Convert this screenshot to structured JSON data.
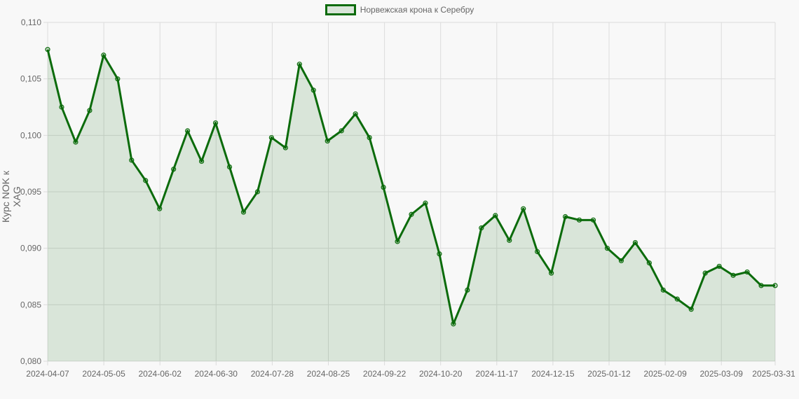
{
  "legend": {
    "label": "Норвежская крона к Серебру"
  },
  "colors": {
    "line": "#0b6b0b",
    "fill": "rgba(0,100,0,0.12)",
    "grid": "#dcdcdc",
    "background": "#f8f8f8"
  },
  "chart_data": {
    "type": "area",
    "title": "",
    "xlabel": "",
    "ylabel": "Курс NOK к XAG",
    "ylim": [
      0.08,
      0.11
    ],
    "yticks": [
      "0,080",
      "0,085",
      "0,090",
      "0,095",
      "0,100",
      "0,105",
      "0,110"
    ],
    "xticks": [
      "2024-04-07",
      "2024-05-05",
      "2024-06-02",
      "2024-06-30",
      "2024-07-28",
      "2024-08-25",
      "2024-09-22",
      "2024-10-20",
      "2024-11-17",
      "2024-12-15",
      "2025-01-12",
      "2025-02-09",
      "2025-03-09",
      "2025-03-31"
    ],
    "grid": true,
    "legend_position": "top",
    "series": [
      {
        "name": "Норвежская крона к Серебру",
        "values": [
          0.1076,
          0.1025,
          0.0994,
          0.1022,
          0.1071,
          0.105,
          0.0978,
          0.096,
          0.0935,
          0.097,
          0.1004,
          0.0977,
          0.1011,
          0.0972,
          0.0932,
          0.095,
          0.0998,
          0.0989,
          0.1063,
          0.104,
          0.0995,
          0.1004,
          0.1019,
          0.0998,
          0.0954,
          0.0906,
          0.093,
          0.094,
          0.0895,
          0.0833,
          0.0863,
          0.0918,
          0.0929,
          0.0907,
          0.0935,
          0.0897,
          0.0878,
          0.0928,
          0.0925,
          0.0925,
          0.09,
          0.0889,
          0.0905,
          0.0887,
          0.0863,
          0.0855,
          0.0846,
          0.0878,
          0.0884,
          0.0876,
          0.0879,
          0.0867,
          0.0867
        ]
      }
    ]
  }
}
